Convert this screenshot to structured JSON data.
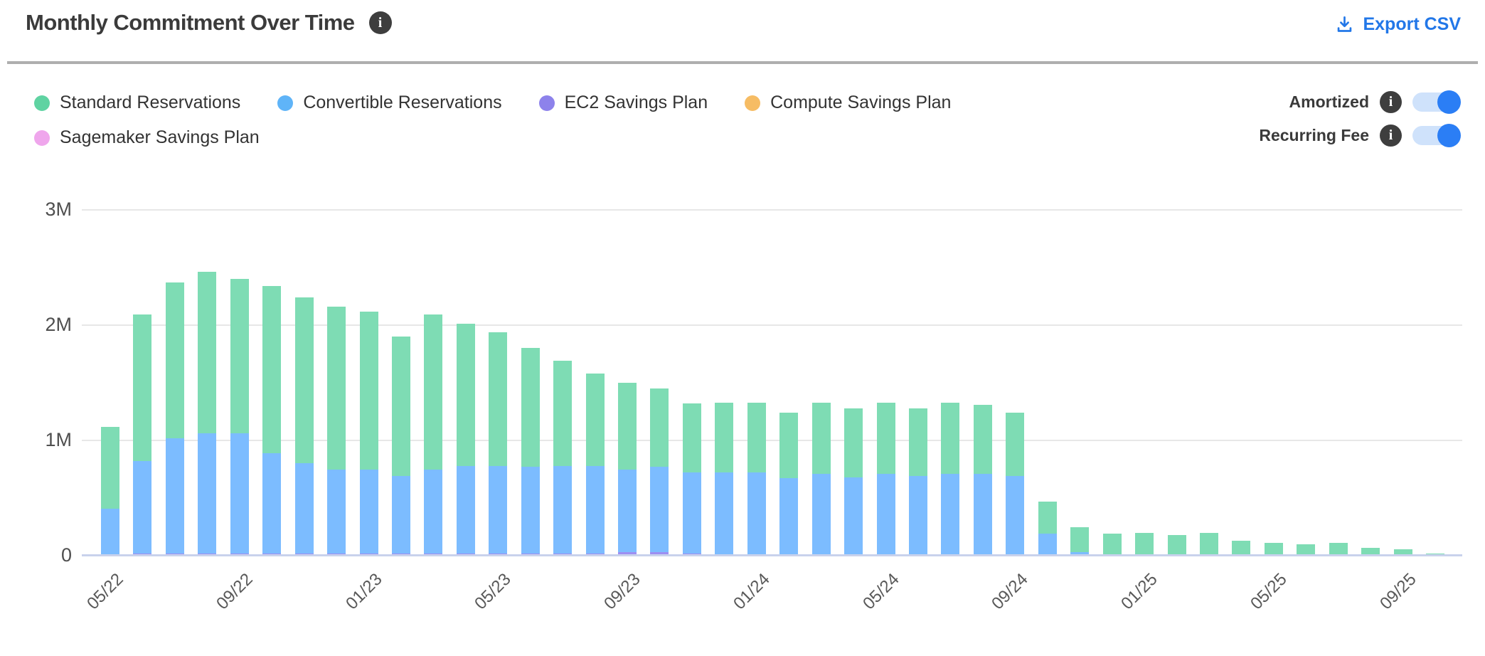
{
  "header": {
    "title": "Monthly Commitment Over Time",
    "export_label": "Export CSV"
  },
  "legend": [
    {
      "label": "Standard Reservations",
      "color": "#5fd3a2"
    },
    {
      "label": "Convertible Reservations",
      "color": "#5fb4f8"
    },
    {
      "label": "EC2 Savings Plan",
      "color": "#8d82eb"
    },
    {
      "label": "Compute Savings Plan",
      "color": "#f6bc64"
    },
    {
      "label": "Sagemaker Savings Plan",
      "color": "#efa6ec"
    }
  ],
  "toggles": [
    {
      "label": "Amortized",
      "enabled": true
    },
    {
      "label": "Recurring Fee",
      "enabled": true
    }
  ],
  "colors": {
    "accent_blue": "#2277e8",
    "toggle_track": "#cfe2fb",
    "toggle_knob": "#2b7ef5",
    "bar_standard": "#7edcb4",
    "bar_convertible": "#7cbcff",
    "bar_ec2": "#9d8ff2",
    "gridline": "#e7e7e7",
    "axis_line": "#c9d2ec"
  },
  "chart_data": {
    "type": "bar",
    "stacked": true,
    "title": "Monthly Commitment Over Time",
    "unit": "M",
    "ylim": [
      0,
      3
    ],
    "y_ticks": [
      "0",
      "1M",
      "2M",
      "3M"
    ],
    "x_tick_labels": [
      "05/22",
      "09/22",
      "01/23",
      "05/23",
      "09/23",
      "01/24",
      "05/24",
      "09/24",
      "01/25",
      "05/25",
      "09/25"
    ],
    "x_tick_every": 4,
    "legend_position": "top-left",
    "grid": true,
    "x": [
      "05/22",
      "06/22",
      "07/22",
      "08/22",
      "09/22",
      "10/22",
      "11/22",
      "12/22",
      "01/23",
      "02/23",
      "03/23",
      "04/23",
      "05/23",
      "06/23",
      "07/23",
      "08/23",
      "09/23",
      "10/23",
      "11/23",
      "12/23",
      "01/24",
      "02/24",
      "03/24",
      "04/24",
      "05/24",
      "06/24",
      "07/24",
      "08/24",
      "09/24",
      "10/24",
      "11/24",
      "12/24",
      "01/25",
      "02/25",
      "03/25",
      "04/25",
      "05/25",
      "06/25",
      "07/25",
      "08/25",
      "09/25",
      "10/25"
    ],
    "stack_order": [
      "EC2 Savings Plan",
      "Convertible Reservations",
      "Standard Reservations",
      "Compute Savings Plan",
      "Sagemaker Savings Plan"
    ],
    "series": [
      {
        "name": "Standard Reservations",
        "color": "#7edcb4",
        "values": [
          0.71,
          1.27,
          1.35,
          1.4,
          1.34,
          1.45,
          1.44,
          1.41,
          1.37,
          1.21,
          1.34,
          1.23,
          1.16,
          1.03,
          0.91,
          0.8,
          0.75,
          0.68,
          0.6,
          0.61,
          0.61,
          0.57,
          0.62,
          0.6,
          0.62,
          0.59,
          0.62,
          0.6,
          0.55,
          0.28,
          0.22,
          0.19,
          0.2,
          0.18,
          0.2,
          0.13,
          0.11,
          0.1,
          0.11,
          0.07,
          0.055,
          0.02
        ]
      },
      {
        "name": "Convertible Reservations",
        "color": "#7cbcff",
        "values": [
          0.4,
          0.8,
          1.0,
          1.04,
          1.04,
          0.87,
          0.78,
          0.73,
          0.73,
          0.67,
          0.73,
          0.76,
          0.76,
          0.75,
          0.76,
          0.76,
          0.72,
          0.74,
          0.7,
          0.72,
          0.72,
          0.67,
          0.71,
          0.68,
          0.71,
          0.69,
          0.71,
          0.71,
          0.69,
          0.19,
          0.03,
          0,
          0,
          0,
          0,
          0,
          0,
          0,
          0,
          0,
          0,
          0
        ]
      },
      {
        "name": "EC2 Savings Plan",
        "color": "#9d8ff2",
        "values": [
          0.01,
          0.02,
          0.02,
          0.02,
          0.02,
          0.02,
          0.02,
          0.02,
          0.02,
          0.02,
          0.02,
          0.02,
          0.02,
          0.02,
          0.02,
          0.02,
          0.03,
          0.03,
          0.02,
          0,
          0,
          0,
          0,
          0,
          0,
          0,
          0,
          0,
          0,
          0,
          0,
          0,
          0,
          0,
          0,
          0,
          0,
          0,
          0,
          0,
          0,
          0
        ]
      },
      {
        "name": "Compute Savings Plan",
        "color": "#f6bc64",
        "values": [
          0,
          0,
          0,
          0,
          0,
          0,
          0,
          0,
          0,
          0,
          0,
          0,
          0,
          0,
          0,
          0,
          0,
          0,
          0,
          0,
          0,
          0,
          0,
          0,
          0,
          0,
          0,
          0,
          0,
          0,
          0,
          0,
          0,
          0,
          0,
          0,
          0,
          0,
          0,
          0,
          0,
          0
        ]
      },
      {
        "name": "Sagemaker Savings Plan",
        "color": "#efa6ec",
        "values": [
          0,
          0,
          0,
          0,
          0,
          0,
          0,
          0,
          0,
          0,
          0,
          0,
          0,
          0,
          0,
          0,
          0,
          0,
          0,
          0,
          0,
          0,
          0,
          0,
          0,
          0,
          0,
          0,
          0,
          0,
          0,
          0,
          0,
          0,
          0,
          0,
          0,
          0,
          0,
          0,
          0,
          0
        ]
      }
    ]
  }
}
